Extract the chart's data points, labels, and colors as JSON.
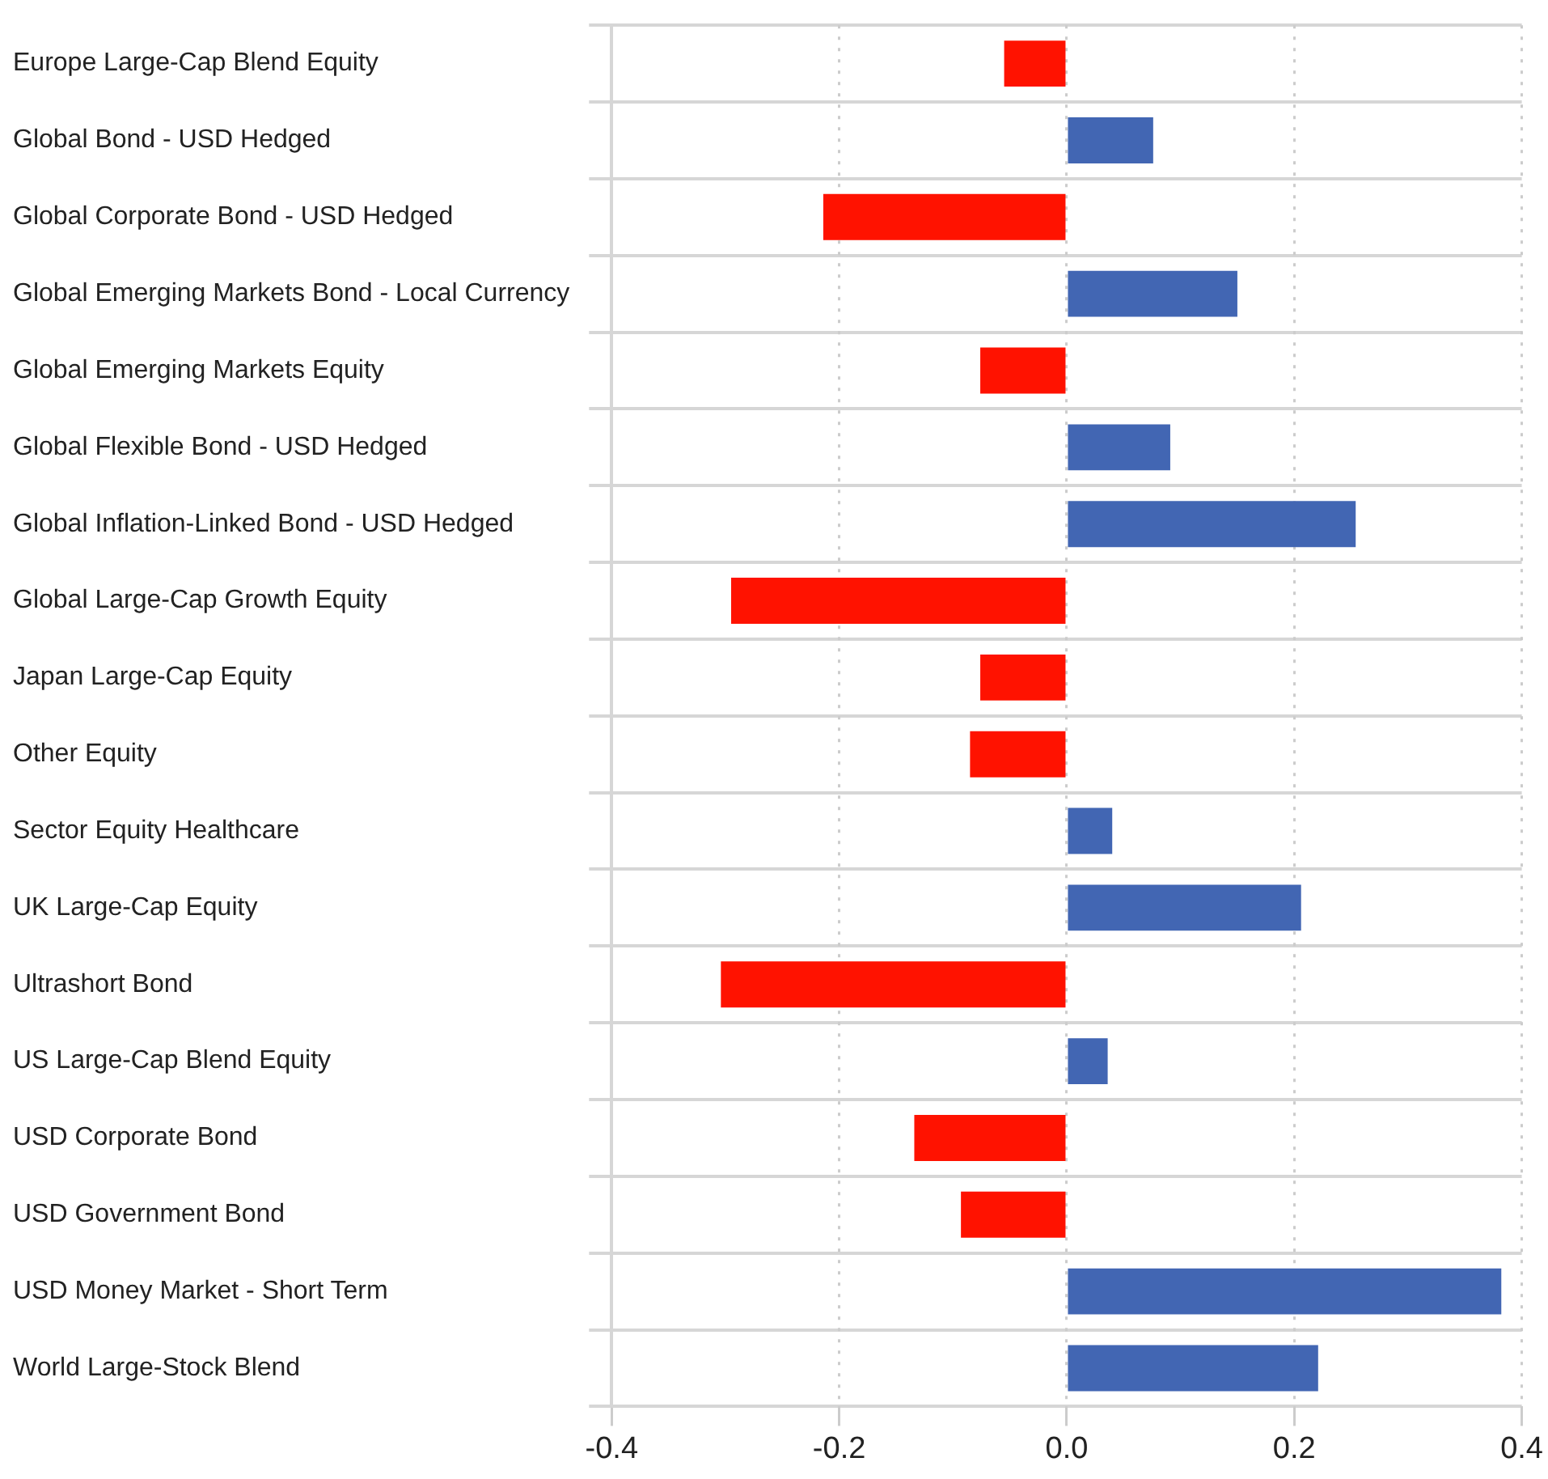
{
  "chart_data": {
    "type": "bar",
    "orientation": "horizontal",
    "categories": [
      "Europe Large-Cap Blend Equity",
      "Global Bond - USD Hedged",
      "Global Corporate Bond - USD Hedged",
      "Global Emerging Markets Bond - Local Currency",
      "Global Emerging Markets Equity",
      "Global Flexible Bond - USD Hedged",
      "Global Inflation-Linked Bond - USD Hedged",
      "Global Large-Cap Growth Equity",
      "Japan Large-Cap Equity",
      "Other Equity",
      "Sector Equity Healthcare",
      "UK Large-Cap Equity",
      "Ultrashort Bond",
      "US Large-Cap Blend Equity",
      "USD Corporate Bond",
      "USD Government Bond",
      "USD Money Market - Short Term",
      "World Large-Stock Blend"
    ],
    "values": [
      -0.055,
      0.076,
      -0.214,
      0.15,
      -0.076,
      0.091,
      0.254,
      -0.295,
      -0.076,
      -0.085,
      0.04,
      0.206,
      -0.304,
      0.036,
      -0.134,
      -0.093,
      0.382,
      0.221
    ],
    "colors": [
      "#ff1200",
      "#4266b3",
      "#ff1200",
      "#4266b3",
      "#ff1200",
      "#4266b3",
      "#4266b3",
      "#ff1200",
      "#ff1200",
      "#ff1200",
      "#4266b3",
      "#4266b3",
      "#ff1200",
      "#4266b3",
      "#ff1200",
      "#ff1200",
      "#4266b3",
      "#4266b3"
    ],
    "xlim": [
      -0.4,
      0.4
    ],
    "xticks": [
      -0.4,
      -0.2,
      {
        "value": 0,
        "label": "0.0"
      },
      0.2,
      0.4
    ],
    "grid": true,
    "legend": false
  }
}
